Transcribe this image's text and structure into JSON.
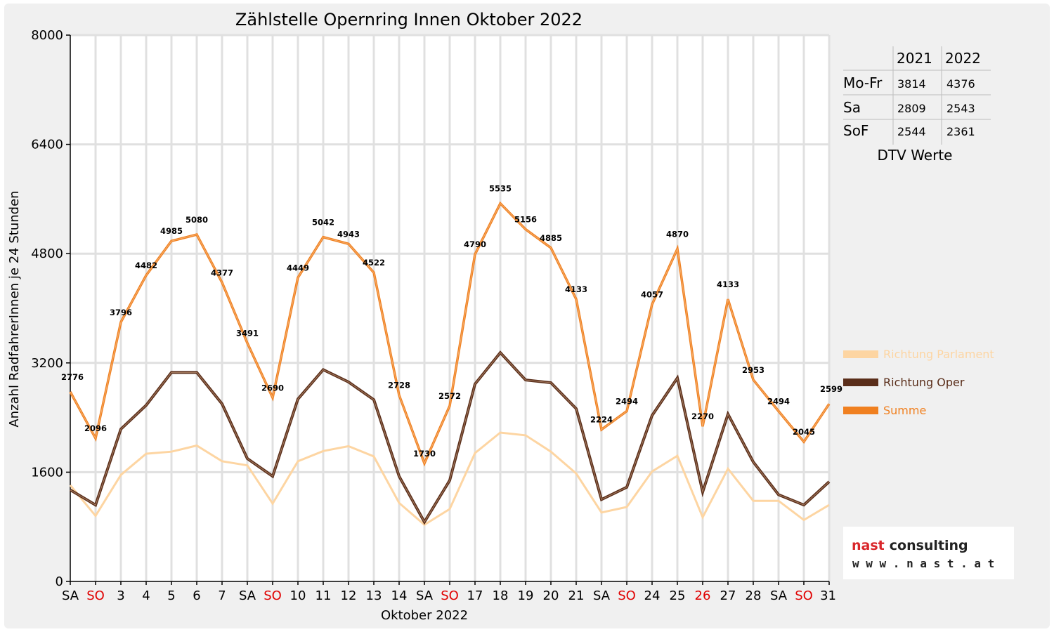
{
  "chart_data": {
    "type": "line",
    "title": "Zählstelle Opernring Innen Oktober 2022",
    "xlabel": "Oktober 2022",
    "ylabel": "Anzahl RadfahrerInnen je 24 Stunden",
    "ylim": [
      0,
      8000
    ],
    "yticks": [
      "0",
      "1600",
      "3200",
      "4800",
      "6400",
      "8000"
    ],
    "grid": true,
    "legend_position": "right",
    "categories": [
      "SA",
      "SO",
      "3",
      "4",
      "5",
      "6",
      "7",
      "SA",
      "SO",
      "10",
      "11",
      "12",
      "13",
      "14",
      "SA",
      "SO",
      "17",
      "18",
      "19",
      "20",
      "21",
      "SA",
      "SO",
      "24",
      "25",
      "26",
      "27",
      "28",
      "SA",
      "SO",
      "31"
    ],
    "red_categories": [
      1,
      8,
      15,
      22,
      25,
      29
    ],
    "series": [
      {
        "name": "Richtung Parlament",
        "color": "#fdd5a2",
        "values": [
          1410,
          960,
          1560,
          1870,
          1900,
          1990,
          1760,
          1700,
          1140,
          1760,
          1910,
          1980,
          1830,
          1150,
          830,
          1060,
          1880,
          2180,
          2140,
          1900,
          1580,
          1010,
          1090,
          1610,
          1840,
          940,
          1650,
          1180,
          1180,
          900,
          1120
        ]
      },
      {
        "name": "Richtung Oper",
        "color": "#5a2e1a",
        "values": [
          1340,
          1120,
          2230,
          2580,
          3060,
          3060,
          2600,
          1800,
          1540,
          2670,
          3100,
          2920,
          2660,
          1540,
          870,
          1480,
          2890,
          3350,
          2950,
          2910,
          2530,
          1200,
          1380,
          2430,
          2980,
          1310,
          2450,
          1750,
          1270,
          1120,
          1460
        ]
      },
      {
        "name": "Summe",
        "color": "#f08020",
        "values": [
          2776,
          2096,
          3796,
          4482,
          4985,
          5080,
          4377,
          3491,
          2690,
          4449,
          5042,
          4943,
          4522,
          2728,
          1730,
          2572,
          4790,
          5535,
          5156,
          4885,
          4133,
          2224,
          2494,
          4057,
          4870,
          2270,
          4133,
          2953,
          2494,
          2045,
          2599
        ]
      }
    ]
  },
  "dtv_table": {
    "caption": "DTV Werte",
    "years": [
      "2021",
      "2022"
    ],
    "rows": [
      {
        "label": "Mo-Fr",
        "values": [
          "3814",
          "4376"
        ]
      },
      {
        "label": "Sa",
        "values": [
          "2809",
          "2543"
        ]
      },
      {
        "label": "SoF",
        "values": [
          "2544",
          "2361"
        ]
      }
    ]
  },
  "logo": {
    "word1": "nast",
    "word2": "consulting",
    "url": "w w w . n a s t . a t",
    "accent_color": "#d9262a"
  }
}
